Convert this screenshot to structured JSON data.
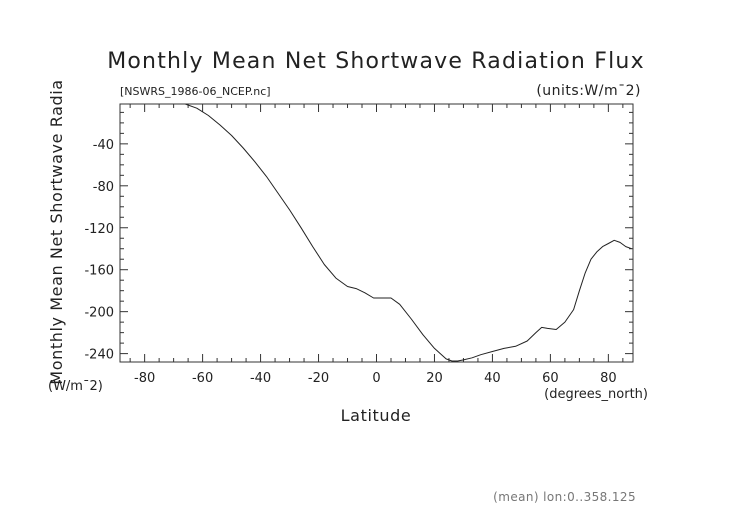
{
  "chart_data": {
    "type": "line",
    "title": "Monthly Mean Net Shortwave Radiation Flux",
    "subtitle_left": "[NSWRS_1986-06_NCEP.nc]",
    "subtitle_right": "(units:W/m¯2)",
    "xlabel": "Latitude",
    "xunits": "(degrees_north)",
    "ylabel": "Monthly Mean Net Shortwave Radia",
    "yunits": "(W/m¯2)",
    "footnote": "(mean) lon:0..358.125",
    "xlim": [
      -88.5,
      88.5
    ],
    "ylim": [
      -248,
      -2
    ],
    "xticks": [
      -80,
      -60,
      -40,
      -20,
      0,
      20,
      40,
      60,
      80
    ],
    "yticks": [
      -40,
      -80,
      -120,
      -160,
      -200,
      -240
    ],
    "grid": false,
    "series": [
      {
        "x": [
          -66,
          -62,
          -58,
          -54,
          -50,
          -46,
          -42,
          -38,
          -34,
          -30,
          -26,
          -22,
          -18,
          -14,
          -10,
          -7,
          -4,
          -1,
          2,
          5,
          8,
          12,
          16,
          20,
          24,
          26,
          28,
          30,
          33,
          36,
          40,
          44,
          48,
          52,
          55,
          57,
          59,
          62,
          65,
          68,
          70,
          72,
          74,
          76,
          78,
          80,
          82,
          84,
          86,
          88
        ],
        "y": [
          -2,
          -6,
          -13,
          -22,
          -32,
          -44,
          -57,
          -71,
          -87,
          -103,
          -120,
          -138,
          -155,
          -168,
          -176,
          -178,
          -182,
          -187,
          -187,
          -187,
          -193,
          -207,
          -222,
          -235,
          -245,
          -247,
          -247,
          -246,
          -244,
          -241,
          -238,
          -235,
          -233,
          -228,
          -220,
          -215,
          -216,
          -217,
          -210,
          -198,
          -180,
          -163,
          -150,
          -143,
          -138,
          -135,
          -132,
          -134,
          -138,
          -140
        ]
      }
    ]
  }
}
